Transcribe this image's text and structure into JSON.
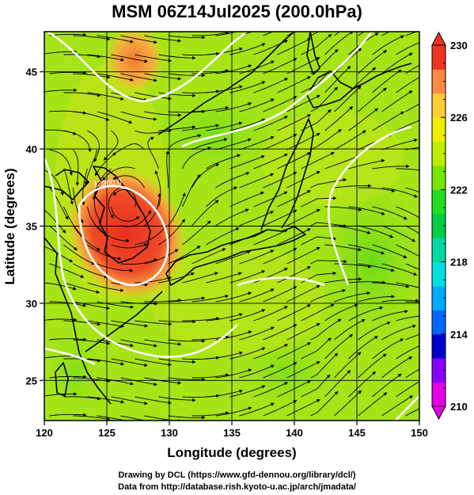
{
  "title": "MSM 06Z14Jul2025 (200.0hPa)",
  "map": {
    "xaxis": {
      "label": "Longitude (degrees)",
      "range": [
        120,
        150
      ],
      "ticks": [
        120,
        125,
        130,
        135,
        140,
        145,
        150
      ]
    },
    "yaxis": {
      "label": "Latitude  (degrees)",
      "range": [
        22.4,
        47.6
      ],
      "ticks": [
        25,
        30,
        35,
        40,
        45
      ]
    },
    "contour_labels": [
      "12300.0"
    ],
    "colorbar": {
      "min": 210,
      "max": 230,
      "ticks": [
        210,
        214,
        218,
        222,
        226,
        230
      ],
      "colors": [
        "#e600e6",
        "#8800ff",
        "#0000cc",
        "#0066ff",
        "#00aaff",
        "#00e0e0",
        "#00d9a0",
        "#00cc44",
        "#22dd22",
        "#77e600",
        "#bbee00",
        "#eeee00",
        "#ffcc33",
        "#ff8844",
        "#ee3322"
      ]
    },
    "heat_anomaly_center": {
      "lon": 126.3,
      "lat": 35.6
    }
  },
  "footer": {
    "line1": "Drawing by DCL (https://www.gfd-dennou.org/library/dcl/)",
    "line2": "Data from http://database.rish.kyoto-u.ac.jp/arch/jmadata/"
  }
}
